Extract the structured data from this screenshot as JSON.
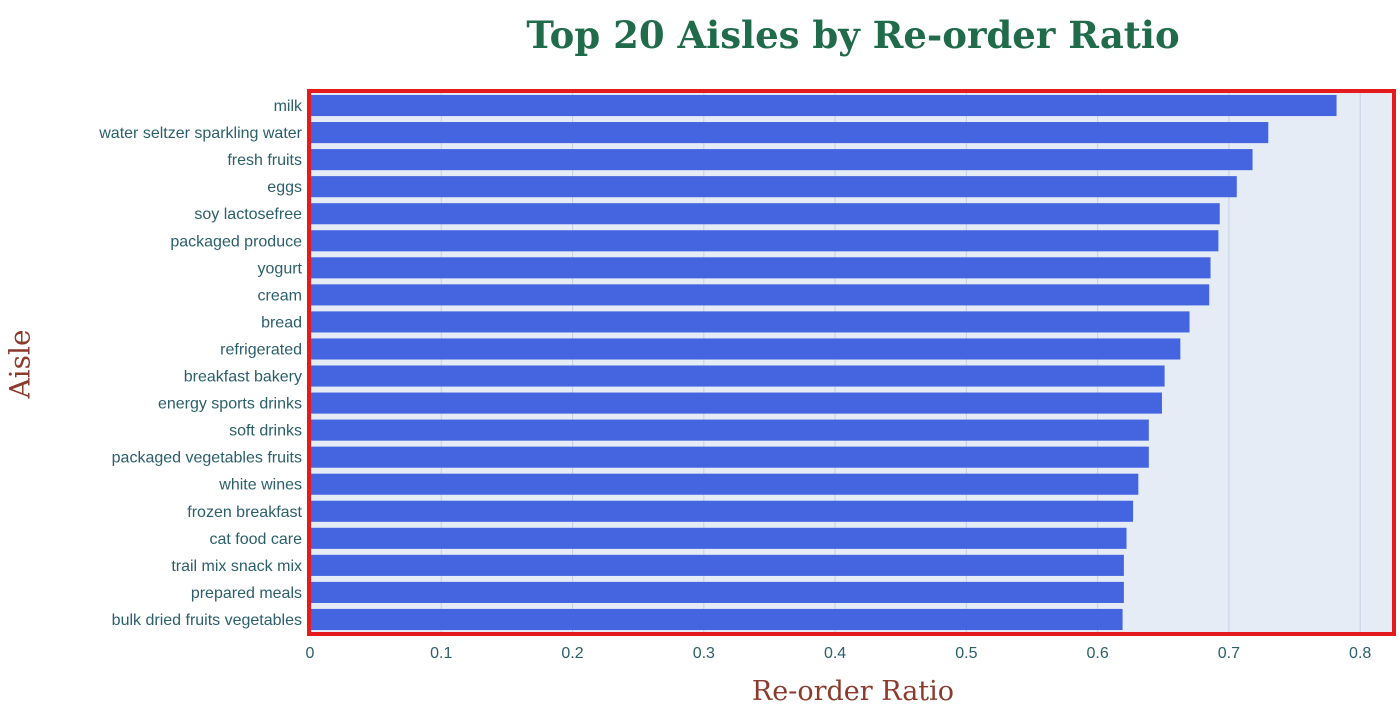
{
  "chart_data": {
    "type": "bar",
    "orientation": "horizontal",
    "title": "Top 20 Aisles by Re-order Ratio",
    "xlabel": "Re-order Ratio",
    "ylabel": "Aisle",
    "xlim": [
      0,
      0.825
    ],
    "xticks": [
      0,
      0.1,
      0.2,
      0.3,
      0.4,
      0.5,
      0.6,
      0.7,
      0.8
    ],
    "xtick_labels": [
      "0",
      "0.1",
      "0.2",
      "0.3",
      "0.4",
      "0.5",
      "0.6",
      "0.7",
      "0.8"
    ],
    "grid": true,
    "categories": [
      "milk",
      "water seltzer sparkling water",
      "fresh fruits",
      "eggs",
      "soy lactosefree",
      "packaged produce",
      "yogurt",
      "cream",
      "bread",
      "refrigerated",
      "breakfast bakery",
      "energy sports drinks",
      "soft drinks",
      "packaged vegetables fruits",
      "white wines",
      "frozen breakfast",
      "cat food care",
      "trail mix snack mix",
      "prepared meals",
      "bulk dried fruits vegetables"
    ],
    "values": [
      0.782,
      0.73,
      0.718,
      0.706,
      0.693,
      0.692,
      0.686,
      0.685,
      0.67,
      0.663,
      0.651,
      0.649,
      0.639,
      0.639,
      0.631,
      0.627,
      0.622,
      0.62,
      0.62,
      0.619
    ],
    "colors": {
      "bar": "#4565e0",
      "plot_bg": "#e5ecf6",
      "highlight_border": "#e41a1c",
      "grid": "#c6d1e3"
    }
  }
}
